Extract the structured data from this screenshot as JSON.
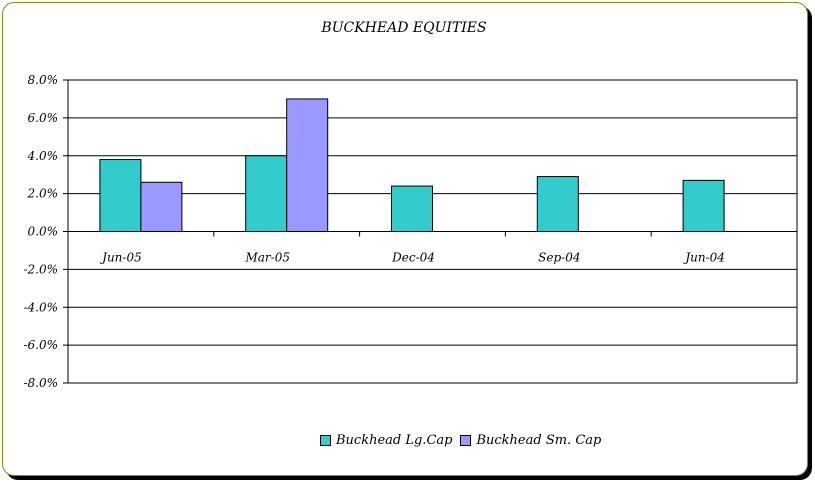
{
  "chart_data": {
    "type": "bar",
    "title": "BUCKHEAD EQUITIES",
    "categories": [
      "Jun-05",
      "Mar-05",
      "Dec-04",
      "Sep-04",
      "Jun-04"
    ],
    "series": [
      {
        "name": "Buckhead Lg.Cap",
        "color": "#33cccc",
        "values": [
          3.8,
          4.0,
          2.4,
          2.9,
          2.7
        ]
      },
      {
        "name": "Buckhead Sm. Cap",
        "color": "#9999ff",
        "values": [
          2.6,
          7.0,
          null,
          null,
          null
        ]
      }
    ],
    "y_ticks": [
      "8.0%",
      "6.0%",
      "4.0%",
      "2.0%",
      "0.0%",
      "-2.0%",
      "-4.0%",
      "-6.0%",
      "-8.0%"
    ],
    "ylim": [
      -8,
      8
    ],
    "y_unit": "%",
    "grid": true,
    "legend_position": "bottom"
  }
}
